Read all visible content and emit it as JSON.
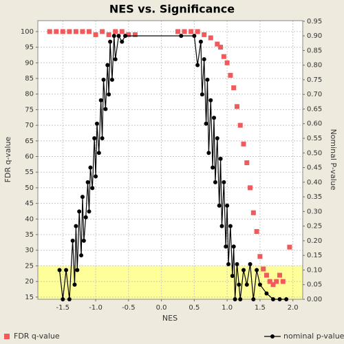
{
  "chart_data": {
    "type": "scatter",
    "title": "NES vs. Significance",
    "x_label": "NES",
    "y_label": "FDR q-value",
    "y2_label": "Nominal P-value",
    "xlim": [
      -1.88,
      2.15
    ],
    "xticks": [
      {
        "value": -1.5,
        "label": "-1.5"
      },
      {
        "value": -1.0,
        "label": "-1.0"
      },
      {
        "value": -0.5,
        "label": "-0.5"
      },
      {
        "value": 0,
        "label": "0.0"
      },
      {
        "value": 0.5,
        "label": "0.5"
      },
      {
        "value": 1.0,
        "label": "1.0"
      },
      {
        "value": 1.5,
        "label": "1.5"
      },
      {
        "value": 2.0,
        "label": "2.0"
      }
    ],
    "ylim": [
      14.3,
      103.5
    ],
    "yticks": [
      15,
      20,
      25,
      30,
      35,
      40,
      45,
      50,
      55,
      60,
      65,
      70,
      75,
      80,
      85,
      90,
      95,
      100
    ],
    "y2lim": [
      0,
      0.952
    ],
    "y2ticks": [
      {
        "value": 0,
        "label": "0.00"
      },
      {
        "value": 0.05,
        "label": "0.05"
      },
      {
        "value": 0.1,
        "label": "0.10"
      },
      {
        "value": 0.15,
        "label": "0.15"
      },
      {
        "value": 0.2,
        "label": "0.20"
      },
      {
        "value": 0.25,
        "label": "0.25"
      },
      {
        "value": 0.3,
        "label": "0.30"
      },
      {
        "value": 0.35,
        "label": "0.35"
      },
      {
        "value": 0.4,
        "label": "0.40"
      },
      {
        "value": 0.45,
        "label": "0.45"
      },
      {
        "value": 0.5,
        "label": "0.50"
      },
      {
        "value": 0.55,
        "label": "0.55"
      },
      {
        "value": 0.6,
        "label": "0.60"
      },
      {
        "value": 0.65,
        "label": "0.65"
      },
      {
        "value": 0.7,
        "label": "0.70"
      },
      {
        "value": 0.75,
        "label": "0.75"
      },
      {
        "value": 0.8,
        "label": "0.80"
      },
      {
        "value": 0.85,
        "label": "0.85"
      },
      {
        "value": 0.9,
        "label": "0.90"
      },
      {
        "value": 0.95,
        "label": "0.95"
      }
    ],
    "grid": true,
    "highlight_below": 25,
    "highlight_color": "#ffff99",
    "series": [
      {
        "name": "FDR q-value",
        "color": "#f05a5a",
        "kind": "scatter",
        "x": [
          -1.7,
          -1.6,
          -1.5,
          -1.4,
          -1.3,
          -1.2,
          -1.1,
          -1.0,
          -0.9,
          -0.8,
          -0.7,
          -0.6,
          -0.5,
          -0.4,
          0.25,
          0.35,
          0.45,
          0.55,
          0.65,
          0.75,
          0.85,
          0.9,
          0.95,
          1.0,
          1.05,
          1.1,
          1.15,
          1.2,
          1.25,
          1.3,
          1.35,
          1.4,
          1.45,
          1.5,
          1.55,
          1.6,
          1.65,
          1.7,
          1.75,
          1.8,
          1.85,
          1.95
        ],
        "values": [
          100,
          100,
          100,
          100,
          100,
          100,
          100,
          99,
          100,
          99,
          100,
          100,
          99,
          99,
          100,
          100,
          100,
          100,
          99,
          98,
          96,
          95,
          92,
          90,
          86,
          82,
          76,
          70,
          64,
          58,
          50,
          42,
          36,
          28,
          24,
          22,
          20,
          19,
          20,
          22,
          20,
          31
        ]
      },
      {
        "name": "nominal p-value",
        "color": "#000000",
        "kind": "line",
        "axis": "y2",
        "x": [
          -1.55,
          -1.5,
          -1.45,
          -1.4,
          -1.35,
          -1.32,
          -1.3,
          -1.28,
          -1.25,
          -1.22,
          -1.2,
          -1.18,
          -1.15,
          -1.12,
          -1.1,
          -1.08,
          -1.05,
          -1.02,
          -1.0,
          -0.98,
          -0.95,
          -0.92,
          -0.9,
          -0.88,
          -0.85,
          -0.82,
          -0.8,
          -0.78,
          -0.75,
          -0.72,
          -0.7,
          -0.65,
          -0.6,
          -0.55,
          0.3,
          0.5,
          0.55,
          0.6,
          0.62,
          0.65,
          0.68,
          0.7,
          0.72,
          0.75,
          0.78,
          0.8,
          0.82,
          0.85,
          0.88,
          0.9,
          0.92,
          0.95,
          0.98,
          1.0,
          1.02,
          1.05,
          1.08,
          1.1,
          1.12,
          1.15,
          1.18,
          1.2,
          1.25,
          1.3,
          1.35,
          1.4,
          1.45,
          1.5,
          1.6,
          1.7,
          1.8,
          1.9
        ],
        "values": [
          0.1,
          0.0,
          0.1,
          0.0,
          0.2,
          0.05,
          0.25,
          0.1,
          0.3,
          0.15,
          0.35,
          0.2,
          0.28,
          0.4,
          0.3,
          0.45,
          0.38,
          0.55,
          0.42,
          0.6,
          0.5,
          0.68,
          0.55,
          0.75,
          0.65,
          0.8,
          0.7,
          0.88,
          0.75,
          0.9,
          0.82,
          0.9,
          0.88,
          0.9,
          0.9,
          0.9,
          0.8,
          0.88,
          0.7,
          0.82,
          0.6,
          0.75,
          0.5,
          0.68,
          0.45,
          0.62,
          0.4,
          0.55,
          0.32,
          0.48,
          0.25,
          0.4,
          0.18,
          0.32,
          0.12,
          0.25,
          0.08,
          0.18,
          0.0,
          0.12,
          0.05,
          0.0,
          0.1,
          0.05,
          0.12,
          0.0,
          0.1,
          0.05,
          0.02,
          0.0,
          0.0,
          0.0
        ]
      }
    ]
  }
}
